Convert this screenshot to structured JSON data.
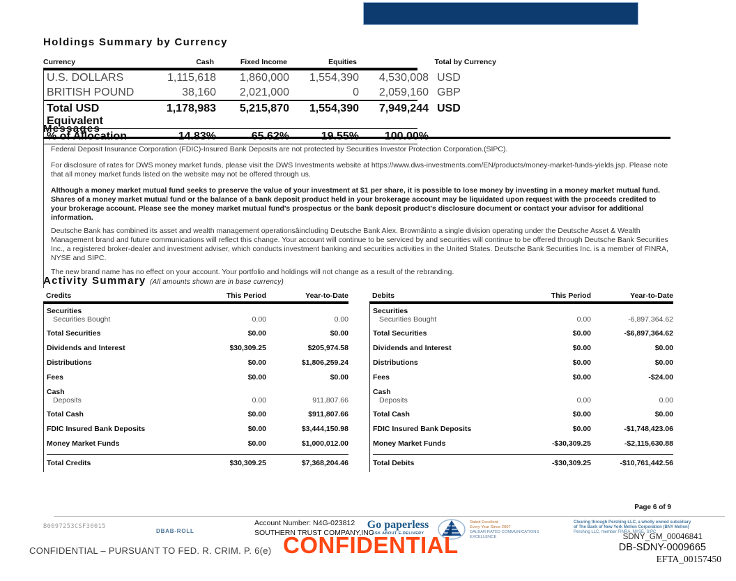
{
  "holdings": {
    "title": "Holdings Summary by Currency",
    "headers": {
      "currency": "Currency",
      "cash": "Cash",
      "fixed_income": "Fixed Income",
      "equities": "Equities",
      "total": "Total by Currency"
    },
    "rows": [
      {
        "style": "plain",
        "cells": [
          "U.S. DOLLARS",
          "1,115,618",
          "1,860,000",
          "1,554,390",
          "4,530,008",
          "USD"
        ]
      },
      {
        "style": "plain",
        "cells": [
          "BRITISH POUND",
          "38,160",
          "2,021,000",
          "0",
          "2,059,160",
          "GBP"
        ]
      },
      {
        "style": "total",
        "cells": [
          "Total USD Equivalent",
          "1,178,983",
          "5,215,870",
          "1,554,390",
          "7,949,244",
          "USD"
        ]
      },
      {
        "style": "alloc",
        "cells": [
          "% of Allocation",
          "14.83%",
          "65.62%",
          "19.55%",
          "100.00%",
          ""
        ]
      }
    ]
  },
  "messages": {
    "title": "Messages",
    "items": [
      {
        "text": "Federal Deposit Insurance Corporation (FDIC)-Insured Bank Deposits are not protected by Securities Investor Protection Corporation.(SIPC)."
      },
      {
        "text": "For disclosure of rates for DWS money market funds, please visit the DWS Investments website at https://www.dws-investments.com/EN/products/money-market-funds-yields.jsp. Please note that all money market funds listed on the website may not be offered through us."
      },
      {
        "text": "Although a money market mutual fund seeks to preserve the value of your investment at $1 per share, it is possible to lose money by investing in a money market mutual fund. Shares of a money market mutual fund or the balance of a bank deposit product held in your brokerage account may be liquidated upon request with the proceeds credited to your brokerage account. Please see the money market mutual fund's prospectus or the bank deposit product's disclosure document or contact your advisor for additional information."
      },
      {
        "text": "Deutsche Bank has combined its asset and wealth management operationsâincluding Deutsche Bank Alex. Brownâinto a single division operating under the Deutsche Asset & Wealth Management brand and future communications will reflect this change. Your account will continue to be serviced by and securities will continue to be offered through Deutsche Bank Securities Inc., a registered broker-dealer and investment adviser, which conducts investment banking and securities activities in the United States. Deutsche Bank Securities Inc. is a member of FINRA, NYSE and SIPC."
      },
      {
        "text": "The new brand name has no effect on your account. Your portfolio and holdings will not change as a result of the rebranding."
      }
    ]
  },
  "activity": {
    "title": "Activity Summary",
    "subtitle": "(All amounts shown are in base currency)",
    "credits": {
      "headers": {
        "label": "Credits",
        "period": "This Period",
        "ytd": "Year-to-Date"
      },
      "rows": [
        {
          "style": "grp0",
          "cells": [
            "Securities",
            "",
            ""
          ]
        },
        {
          "style": "sub",
          "cells": [
            "Securities Bought",
            "0.00",
            "0.00"
          ]
        },
        {
          "style": "bold1",
          "cells": [
            "Total Securities",
            "$0.00",
            "$0.00"
          ]
        },
        {
          "style": "bold",
          "cells": [
            "Dividends and Interest",
            "$30,309.25",
            "$205,974.58"
          ]
        },
        {
          "style": "bold",
          "cells": [
            "Distributions",
            "$0.00",
            "$1,806,259.24"
          ]
        },
        {
          "style": "bold",
          "cells": [
            "Fees",
            "$0.00",
            "$0.00"
          ]
        },
        {
          "style": "grp",
          "cells": [
            "Cash",
            "",
            ""
          ]
        },
        {
          "style": "sub",
          "cells": [
            "Deposits",
            "0.00",
            "911,807.66"
          ]
        },
        {
          "style": "bold1",
          "cells": [
            "Total Cash",
            "$0.00",
            "$911,807.66"
          ]
        },
        {
          "style": "bold",
          "cells": [
            "FDIC Insured Bank Deposits",
            "$0.00",
            "$3,444,150.98"
          ]
        },
        {
          "style": "bold",
          "cells": [
            "Money Market Funds",
            "$0.00",
            "$1,000,012.00"
          ]
        },
        {
          "style": "total",
          "cells": [
            "Total Credits",
            "$30,309.25",
            "$7,368,204.46"
          ]
        }
      ]
    },
    "debits": {
      "headers": {
        "label": "Debits",
        "period": "This Period",
        "ytd": "Year-to-Date"
      },
      "rows": [
        {
          "style": "grp0",
          "cells": [
            "Securities",
            "",
            ""
          ]
        },
        {
          "style": "sub",
          "cells": [
            "Securities Bought",
            "0.00",
            "-6,897,364.62"
          ]
        },
        {
          "style": "bold1",
          "cells": [
            "Total Securities",
            "$0.00",
            "-$6,897,364.62"
          ]
        },
        {
          "style": "bold",
          "cells": [
            "Dividends and Interest",
            "$0.00",
            "$0.00"
          ]
        },
        {
          "style": "bold",
          "cells": [
            "Distributions",
            "$0.00",
            "$0.00"
          ]
        },
        {
          "style": "bold",
          "cells": [
            "Fees",
            "$0.00",
            "-$24.00"
          ]
        },
        {
          "style": "grp",
          "cells": [
            "Cash",
            "",
            ""
          ]
        },
        {
          "style": "sub",
          "cells": [
            "Deposits",
            "0.00",
            "0.00"
          ]
        },
        {
          "style": "bold1",
          "cells": [
            "Total Cash",
            "$0.00",
            "$0.00"
          ]
        },
        {
          "style": "bold",
          "cells": [
            "FDIC Insured Bank Deposits",
            "$0.00",
            "-$1,748,423.06"
          ]
        },
        {
          "style": "bold",
          "cells": [
            "Money Market Funds",
            "-$30,309.25",
            "-$2,115,630.88"
          ]
        },
        {
          "style": "total",
          "cells": [
            "Total Debits",
            "-$30,309.25",
            "-$10,761,442.56"
          ]
        }
      ]
    }
  },
  "footer": {
    "page_number": "Page 6 of 9",
    "doc_code": "B0097253CSF30015",
    "dbab": "DBAB-ROLL",
    "account_number": "Account Number: N4G-023812",
    "account_name": "SOUTHERN TRUST COMPANY,INC",
    "go_paperless": "Go paperless",
    "go_paperless_sub": "ASK ABOUT E-DELIVERY",
    "dalbar_line1": "Rated Excellent",
    "dalbar_line2": "Every Year Since 2007",
    "dalbar_line3": "DALBAR RATED COMMUNICATIONS",
    "dalbar_line4": "EXCELLENCE",
    "pershing_line1": "Clearing through Pershing LLC, a wholly owned subsidiary",
    "pershing_line2": "of The Bank of New York Mellon Corporation (BNY Mellon)",
    "pershing_line3": "Pershing LLC, member FINRA, NYSE, SIPC",
    "watermark": "CONFIDENTIAL",
    "stamp1": "SDNY_GM_00046841",
    "stamp2": "DB-SDNY-0009665",
    "stamp3": "EFTA_00157450",
    "confidential_line": "CONFIDENTIAL – PURSUANT TO FED. R. CRIM. P. 6(e)"
  },
  "colors": {
    "header_bar": "#0d3b70",
    "watermark_orange": "#ff4714",
    "footer_blue": "#4a7aa0"
  }
}
